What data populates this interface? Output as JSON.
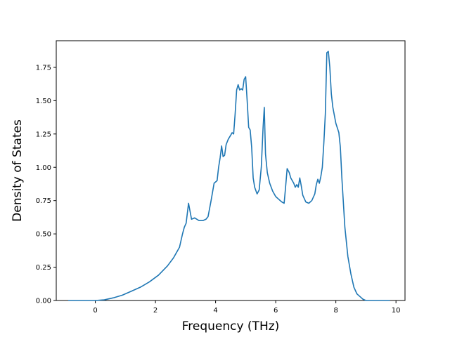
{
  "chart_data": {
    "type": "line",
    "xlabel": "Frequency (THz)",
    "ylabel": "Density of States",
    "xlim": [
      -1.3,
      10.3
    ],
    "ylim": [
      0,
      1.95
    ],
    "x_ticks": [
      0,
      2,
      4,
      6,
      8,
      10
    ],
    "y_ticks": [
      0.0,
      0.25,
      0.5,
      0.75,
      1.0,
      1.25,
      1.5,
      1.75
    ],
    "x_tick_labels": [
      "0",
      "2",
      "4",
      "6",
      "8",
      "10"
    ],
    "y_tick_labels": [
      "0.00",
      "0.25",
      "0.50",
      "0.75",
      "1.00",
      "1.25",
      "1.50",
      "1.75"
    ],
    "grid": false,
    "line_color": "#1f77b4",
    "series": [
      {
        "x": [
          -0.9,
          -0.5,
          0.0,
          0.3,
          0.6,
          0.9,
          1.2,
          1.5,
          1.8,
          2.1,
          2.4,
          2.6,
          2.7,
          2.8,
          2.9,
          2.96,
          3.02,
          3.1,
          3.2,
          3.3,
          3.45,
          3.58,
          3.68,
          3.75,
          3.85,
          3.95,
          4.05,
          4.1,
          4.15,
          4.2,
          4.25,
          4.3,
          4.35,
          4.42,
          4.5,
          4.55,
          4.6,
          4.65,
          4.7,
          4.75,
          4.8,
          4.85,
          4.9,
          4.95,
          5.0,
          5.05,
          5.1,
          5.15,
          5.2,
          5.25,
          5.3,
          5.38,
          5.45,
          5.52,
          5.58,
          5.62,
          5.66,
          5.72,
          5.8,
          5.9,
          6.0,
          6.1,
          6.2,
          6.28,
          6.32,
          6.38,
          6.45,
          6.5,
          6.6,
          6.65,
          6.7,
          6.75,
          6.8,
          6.85,
          6.9,
          7.0,
          7.1,
          7.2,
          7.3,
          7.35,
          7.4,
          7.45,
          7.5,
          7.55,
          7.6,
          7.65,
          7.7,
          7.75,
          7.8,
          7.85,
          7.9,
          8.0,
          8.1,
          8.15,
          8.2,
          8.3,
          8.4,
          8.5,
          8.6,
          8.7,
          8.75,
          8.8,
          8.9,
          9.0,
          9.3,
          9.8
        ],
        "y": [
          0.0,
          0.0,
          0.0,
          0.005,
          0.02,
          0.04,
          0.07,
          0.1,
          0.14,
          0.19,
          0.26,
          0.32,
          0.36,
          0.4,
          0.5,
          0.55,
          0.58,
          0.73,
          0.61,
          0.62,
          0.6,
          0.6,
          0.61,
          0.63,
          0.75,
          0.88,
          0.9,
          1.0,
          1.07,
          1.16,
          1.08,
          1.09,
          1.17,
          1.21,
          1.24,
          1.26,
          1.25,
          1.4,
          1.58,
          1.62,
          1.58,
          1.59,
          1.58,
          1.66,
          1.68,
          1.5,
          1.3,
          1.28,
          1.15,
          0.92,
          0.85,
          0.8,
          0.83,
          1.0,
          1.3,
          1.45,
          1.1,
          0.96,
          0.88,
          0.82,
          0.78,
          0.76,
          0.74,
          0.73,
          0.83,
          0.99,
          0.96,
          0.92,
          0.88,
          0.85,
          0.87,
          0.85,
          0.92,
          0.86,
          0.79,
          0.74,
          0.73,
          0.75,
          0.8,
          0.87,
          0.91,
          0.88,
          0.93,
          1.0,
          1.18,
          1.4,
          1.86,
          1.87,
          1.75,
          1.55,
          1.45,
          1.33,
          1.26,
          1.15,
          0.92,
          0.55,
          0.33,
          0.2,
          0.1,
          0.05,
          0.04,
          0.03,
          0.01,
          0.0,
          0.0,
          0.0
        ]
      }
    ]
  }
}
